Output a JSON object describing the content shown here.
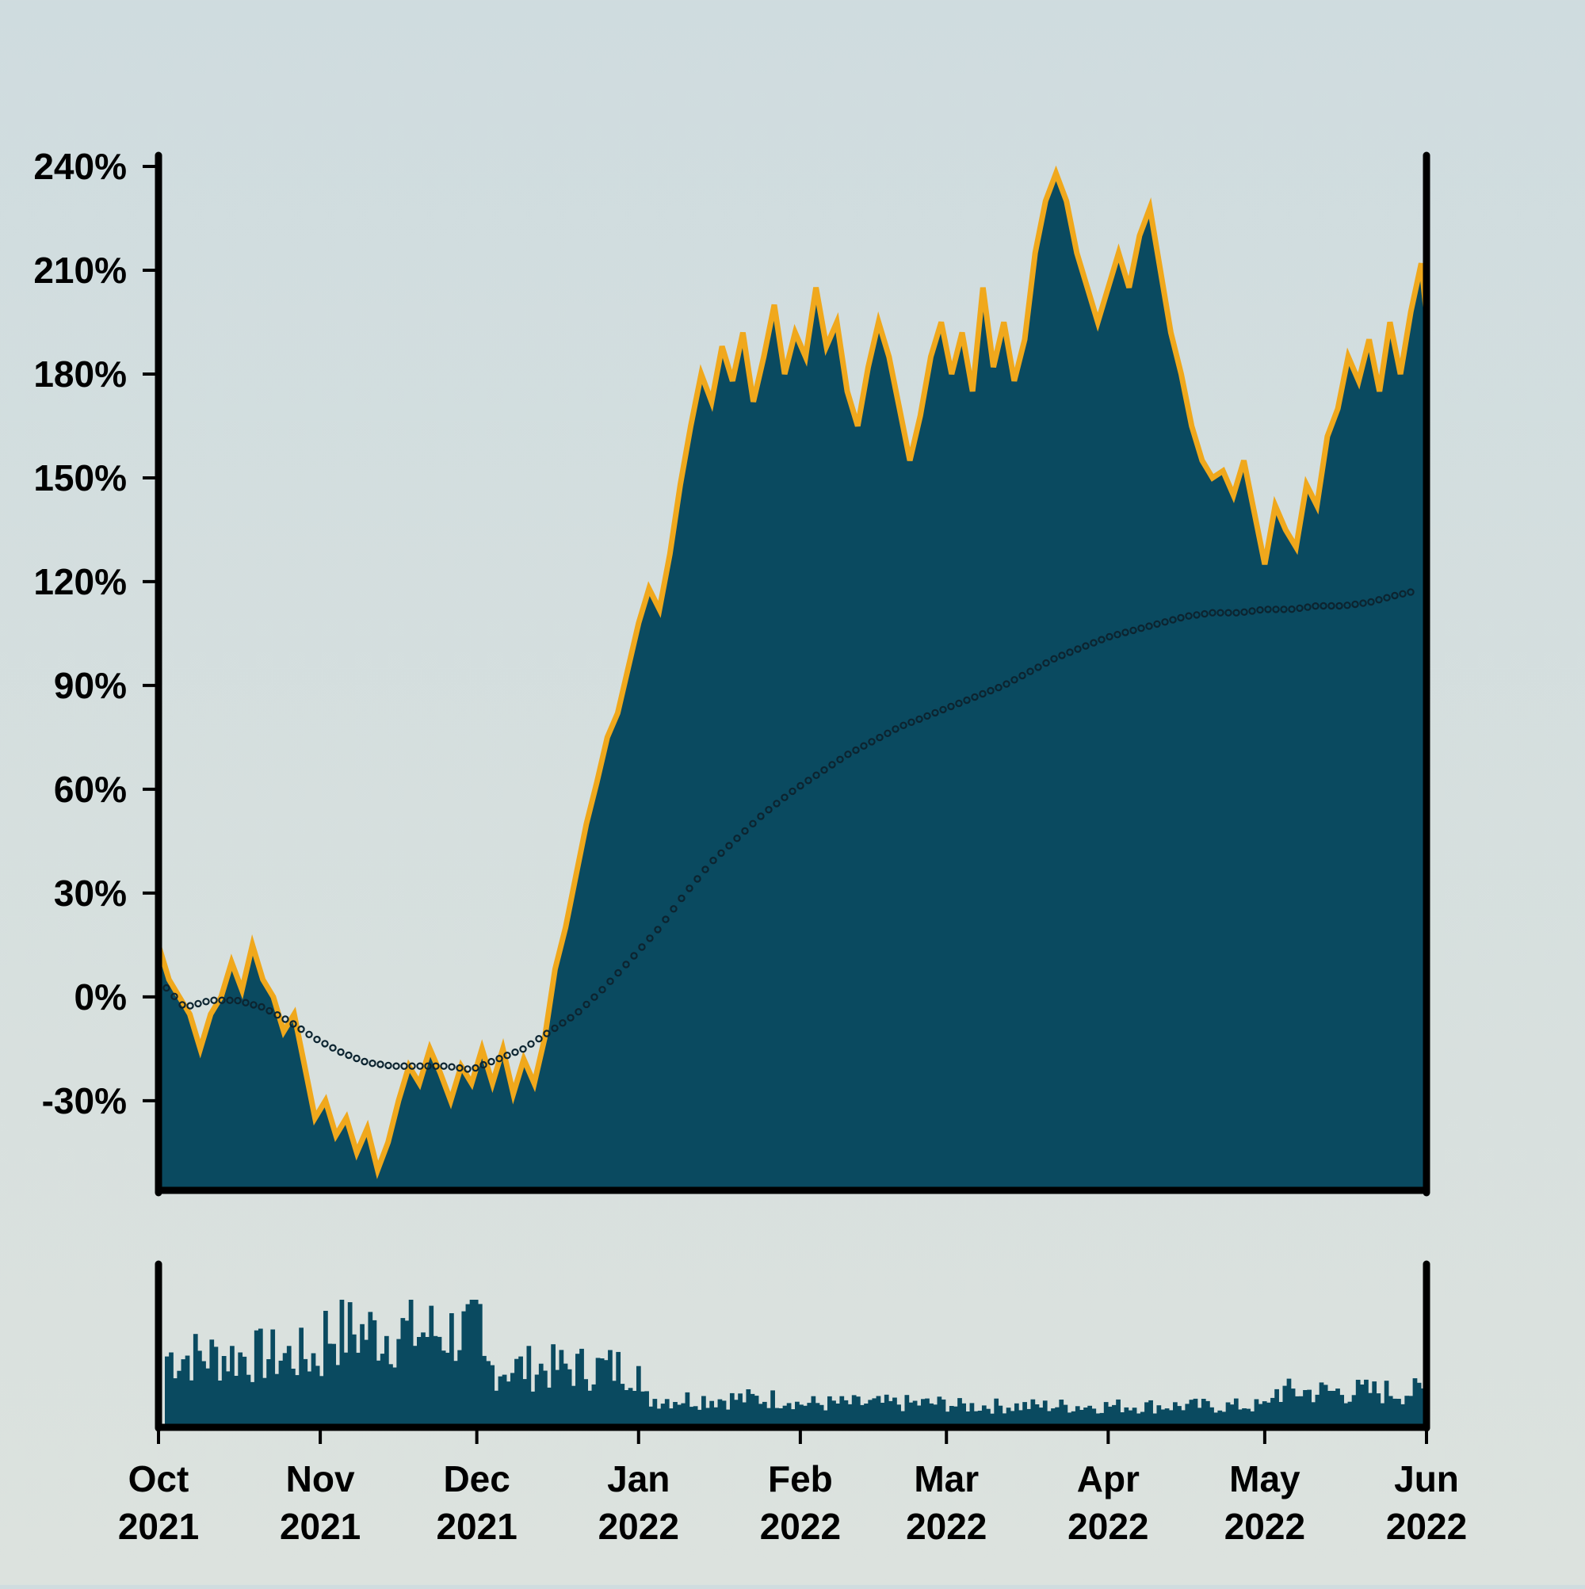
{
  "chart_data": [
    {
      "type": "area",
      "x_start": "2021-10-01",
      "x_end": "2022-06-01",
      "ylim": [
        -0.55,
        2.4
      ],
      "yticks": [
        -0.3,
        0.0,
        0.3,
        0.6,
        0.9,
        1.2,
        1.5,
        1.8,
        2.1,
        2.4
      ],
      "ytick_labels": [
        "-30%",
        "0%",
        "30%",
        "60%",
        "90%",
        "120%",
        "150%",
        "180%",
        "210%",
        "240%"
      ],
      "grid": false,
      "colors": {
        "area": "#0a4a60",
        "line": "#f0a81c",
        "trend": "#0c2430"
      },
      "series": [
        {
          "role": "cumulative return",
          "points": [
            [
              "2021-10-01",
              0.15
            ],
            [
              "2021-10-03",
              0.05
            ],
            [
              "2021-10-05",
              0.0
            ],
            [
              "2021-10-07",
              -0.05
            ],
            [
              "2021-10-09",
              -0.15
            ],
            [
              "2021-10-11",
              -0.05
            ],
            [
              "2021-10-13",
              0.0
            ],
            [
              "2021-10-15",
              0.1
            ],
            [
              "2021-10-17",
              0.02
            ],
            [
              "2021-10-19",
              0.15
            ],
            [
              "2021-10-21",
              0.05
            ],
            [
              "2021-10-23",
              0.0
            ],
            [
              "2021-10-25",
              -0.1
            ],
            [
              "2021-10-27",
              -0.05
            ],
            [
              "2021-10-29",
              -0.2
            ],
            [
              "2021-10-31",
              -0.35
            ],
            [
              "2021-11-02",
              -0.3
            ],
            [
              "2021-11-04",
              -0.4
            ],
            [
              "2021-11-06",
              -0.35
            ],
            [
              "2021-11-08",
              -0.45
            ],
            [
              "2021-11-10",
              -0.38
            ],
            [
              "2021-11-12",
              -0.5
            ],
            [
              "2021-11-14",
              -0.42
            ],
            [
              "2021-11-16",
              -0.3
            ],
            [
              "2021-11-18",
              -0.2
            ],
            [
              "2021-11-20",
              -0.25
            ],
            [
              "2021-11-22",
              -0.15
            ],
            [
              "2021-11-24",
              -0.22
            ],
            [
              "2021-11-26",
              -0.3
            ],
            [
              "2021-11-28",
              -0.2
            ],
            [
              "2021-11-30",
              -0.25
            ],
            [
              "2021-12-02",
              -0.15
            ],
            [
              "2021-12-04",
              -0.25
            ],
            [
              "2021-12-06",
              -0.15
            ],
            [
              "2021-12-08",
              -0.28
            ],
            [
              "2021-12-10",
              -0.18
            ],
            [
              "2021-12-12",
              -0.25
            ],
            [
              "2021-12-14",
              -0.12
            ],
            [
              "2021-12-16",
              0.08
            ],
            [
              "2021-12-18",
              0.2
            ],
            [
              "2021-12-20",
              0.35
            ],
            [
              "2021-12-22",
              0.5
            ],
            [
              "2021-12-24",
              0.62
            ],
            [
              "2021-12-26",
              0.75
            ],
            [
              "2021-12-28",
              0.82
            ],
            [
              "2021-12-30",
              0.95
            ],
            [
              "2022-01-01",
              1.08
            ],
            [
              "2022-01-03",
              1.18
            ],
            [
              "2022-01-05",
              1.12
            ],
            [
              "2022-01-07",
              1.28
            ],
            [
              "2022-01-09",
              1.48
            ],
            [
              "2022-01-11",
              1.65
            ],
            [
              "2022-01-13",
              1.8
            ],
            [
              "2022-01-15",
              1.72
            ],
            [
              "2022-01-17",
              1.88
            ],
            [
              "2022-01-19",
              1.78
            ],
            [
              "2022-01-21",
              1.92
            ],
            [
              "2022-01-23",
              1.72
            ],
            [
              "2022-01-25",
              1.85
            ],
            [
              "2022-01-27",
              2.0
            ],
            [
              "2022-01-29",
              1.8
            ],
            [
              "2022-01-31",
              1.92
            ],
            [
              "2022-02-02",
              1.85
            ],
            [
              "2022-02-04",
              2.05
            ],
            [
              "2022-02-06",
              1.88
            ],
            [
              "2022-02-08",
              1.95
            ],
            [
              "2022-02-10",
              1.75
            ],
            [
              "2022-02-12",
              1.65
            ],
            [
              "2022-02-14",
              1.82
            ],
            [
              "2022-02-16",
              1.95
            ],
            [
              "2022-02-18",
              1.85
            ],
            [
              "2022-02-20",
              1.7
            ],
            [
              "2022-02-22",
              1.55
            ],
            [
              "2022-02-24",
              1.68
            ],
            [
              "2022-02-26",
              1.85
            ],
            [
              "2022-02-28",
              1.95
            ],
            [
              "2022-03-02",
              1.8
            ],
            [
              "2022-03-04",
              1.92
            ],
            [
              "2022-03-06",
              1.75
            ],
            [
              "2022-03-08",
              2.05
            ],
            [
              "2022-03-10",
              1.82
            ],
            [
              "2022-03-12",
              1.95
            ],
            [
              "2022-03-14",
              1.78
            ],
            [
              "2022-03-16",
              1.9
            ],
            [
              "2022-03-18",
              2.15
            ],
            [
              "2022-03-20",
              2.3
            ],
            [
              "2022-03-22",
              2.38
            ],
            [
              "2022-03-24",
              2.3
            ],
            [
              "2022-03-26",
              2.15
            ],
            [
              "2022-03-28",
              2.05
            ],
            [
              "2022-03-30",
              1.95
            ],
            [
              "2022-04-01",
              2.05
            ],
            [
              "2022-04-03",
              2.15
            ],
            [
              "2022-04-05",
              2.05
            ],
            [
              "2022-04-07",
              2.2
            ],
            [
              "2022-04-09",
              2.28
            ],
            [
              "2022-04-11",
              2.1
            ],
            [
              "2022-04-13",
              1.92
            ],
            [
              "2022-04-15",
              1.8
            ],
            [
              "2022-04-17",
              1.65
            ],
            [
              "2022-04-19",
              1.55
            ],
            [
              "2022-04-21",
              1.5
            ],
            [
              "2022-04-23",
              1.52
            ],
            [
              "2022-04-25",
              1.45
            ],
            [
              "2022-04-27",
              1.55
            ],
            [
              "2022-04-29",
              1.4
            ],
            [
              "2022-05-01",
              1.25
            ],
            [
              "2022-05-03",
              1.42
            ],
            [
              "2022-05-05",
              1.35
            ],
            [
              "2022-05-07",
              1.3
            ],
            [
              "2022-05-09",
              1.48
            ],
            [
              "2022-05-11",
              1.42
            ],
            [
              "2022-05-13",
              1.62
            ],
            [
              "2022-05-15",
              1.7
            ],
            [
              "2022-05-17",
              1.85
            ],
            [
              "2022-05-19",
              1.78
            ],
            [
              "2022-05-21",
              1.9
            ],
            [
              "2022-05-23",
              1.75
            ],
            [
              "2022-05-25",
              1.95
            ],
            [
              "2022-05-27",
              1.8
            ],
            [
              "2022-05-29",
              1.98
            ],
            [
              "2022-05-31",
              2.12
            ],
            [
              "2022-06-01",
              1.97
            ]
          ]
        },
        {
          "role": "trend",
          "style": "dotted",
          "points": [
            [
              "2021-10-01",
              0.05
            ],
            [
              "2021-10-06",
              -0.03
            ],
            [
              "2021-10-11",
              -0.01
            ],
            [
              "2021-10-16",
              -0.01
            ],
            [
              "2021-10-21",
              -0.03
            ],
            [
              "2021-10-26",
              -0.07
            ],
            [
              "2021-10-31",
              -0.12
            ],
            [
              "2021-11-05",
              -0.16
            ],
            [
              "2021-11-10",
              -0.19
            ],
            [
              "2021-11-15",
              -0.2
            ],
            [
              "2021-11-20",
              -0.2
            ],
            [
              "2021-11-25",
              -0.2
            ],
            [
              "2021-11-30",
              -0.21
            ],
            [
              "2021-12-05",
              -0.18
            ],
            [
              "2021-12-10",
              -0.15
            ],
            [
              "2021-12-15",
              -0.1
            ],
            [
              "2021-12-20",
              -0.05
            ],
            [
              "2021-12-25",
              0.02
            ],
            [
              "2021-12-30",
              0.1
            ],
            [
              "2022-01-05",
              0.2
            ],
            [
              "2022-01-10",
              0.3
            ],
            [
              "2022-01-15",
              0.39
            ],
            [
              "2022-01-20",
              0.46
            ],
            [
              "2022-01-25",
              0.53
            ],
            [
              "2022-01-31",
              0.6
            ],
            [
              "2022-02-05",
              0.65
            ],
            [
              "2022-02-10",
              0.7
            ],
            [
              "2022-02-15",
              0.74
            ],
            [
              "2022-02-20",
              0.78
            ],
            [
              "2022-02-25",
              0.81
            ],
            [
              "2022-03-02",
              0.84
            ],
            [
              "2022-03-07",
              0.87
            ],
            [
              "2022-03-12",
              0.9
            ],
            [
              "2022-03-17",
              0.94
            ],
            [
              "2022-03-22",
              0.98
            ],
            [
              "2022-03-27",
              1.01
            ],
            [
              "2022-04-01",
              1.04
            ],
            [
              "2022-04-06",
              1.06
            ],
            [
              "2022-04-11",
              1.08
            ],
            [
              "2022-04-16",
              1.1
            ],
            [
              "2022-04-21",
              1.11
            ],
            [
              "2022-04-26",
              1.11
            ],
            [
              "2022-05-01",
              1.12
            ],
            [
              "2022-05-06",
              1.12
            ],
            [
              "2022-05-11",
              1.13
            ],
            [
              "2022-05-16",
              1.13
            ],
            [
              "2022-05-21",
              1.14
            ],
            [
              "2022-05-26",
              1.16
            ],
            [
              "2022-06-01",
              1.18
            ]
          ]
        }
      ]
    },
    {
      "type": "bar",
      "x_start": "2021-10-01",
      "x_end": "2022-06-01",
      "colors": {
        "bar": "#0a4a60"
      },
      "monthly_relative_level": [
        0.58,
        0.78,
        0.48,
        0.22,
        0.18,
        0.16,
        0.16,
        0.28
      ],
      "xtick_labels": [
        [
          "Oct",
          "2021"
        ],
        [
          "Nov",
          "2021"
        ],
        [
          "Dec",
          "2021"
        ],
        [
          "Jan",
          "2022"
        ],
        [
          "Feb",
          "2022"
        ],
        [
          "Mar",
          "2022"
        ],
        [
          "Apr",
          "2022"
        ],
        [
          "May",
          "2022"
        ],
        [
          "Jun",
          "2022"
        ]
      ]
    }
  ]
}
